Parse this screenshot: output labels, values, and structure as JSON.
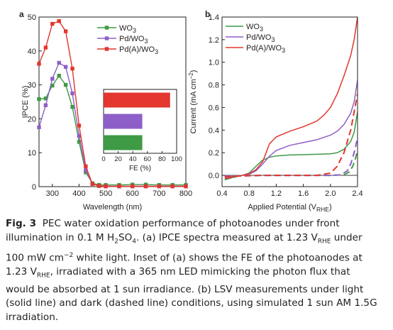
{
  "chart_data": [
    {
      "type": "line",
      "panel_label": "a",
      "xlabel": "Wavelength (nm)",
      "ylabel": "IPCE (%)",
      "xlim": [
        250,
        800
      ],
      "ylim": [
        0,
        50
      ],
      "x_ticks": [
        300,
        400,
        500,
        600,
        700,
        800
      ],
      "y_ticks": [
        0,
        10,
        20,
        30,
        40,
        50
      ],
      "legend_position": "top-right",
      "series": [
        {
          "name": "WO3",
          "color": "#3f9a45",
          "marker": "square",
          "points": [
            [
              250,
              25.8
            ],
            [
              275,
              26.0
            ],
            [
              300,
              29.8
            ],
            [
              325,
              32.7
            ],
            [
              350,
              30.0
            ],
            [
              375,
              23.5
            ],
            [
              400,
              13.2
            ],
            [
              425,
              4.2
            ],
            [
              450,
              1.0
            ],
            [
              475,
              0.5
            ],
            [
              500,
              0.5
            ],
            [
              550,
              0.5
            ],
            [
              600,
              0.6
            ],
            [
              650,
              0.6
            ],
            [
              700,
              0.5
            ],
            [
              750,
              0.5
            ],
            [
              800,
              0.5
            ]
          ]
        },
        {
          "name": "Pd/WO3",
          "color": "#8e5fc8",
          "marker": "square",
          "points": [
            [
              250,
              17.5
            ],
            [
              275,
              24.0
            ],
            [
              300,
              31.8
            ],
            [
              325,
              36.5
            ],
            [
              350,
              35.3
            ],
            [
              375,
              27.5
            ],
            [
              400,
              15.0
            ],
            [
              425,
              4.8
            ],
            [
              450,
              0.8
            ],
            [
              475,
              0.2
            ],
            [
              500,
              0.1
            ],
            [
              550,
              0.1
            ],
            [
              600,
              0.1
            ],
            [
              650,
              0.1
            ],
            [
              700,
              0.1
            ],
            [
              750,
              0.1
            ],
            [
              800,
              0.1
            ]
          ]
        },
        {
          "name": "Pd(A)/WO3",
          "color": "#e2362e",
          "marker": "square",
          "points": [
            [
              250,
              36.2
            ],
            [
              275,
              41.0
            ],
            [
              300,
              48.0
            ],
            [
              325,
              48.8
            ],
            [
              350,
              45.8
            ],
            [
              375,
              34.8
            ],
            [
              400,
              18.0
            ],
            [
              425,
              6.0
            ],
            [
              450,
              0.8
            ],
            [
              475,
              0.2
            ],
            [
              500,
              0.1
            ],
            [
              550,
              0.1
            ],
            [
              600,
              0.1
            ],
            [
              650,
              0.1
            ],
            [
              700,
              0.1
            ],
            [
              750,
              0.1
            ],
            [
              800,
              0.1
            ]
          ]
        }
      ],
      "inset": {
        "type": "bar",
        "orientation": "horizontal",
        "xlabel": "FE (%)",
        "xlim": [
          0,
          100
        ],
        "x_ticks": [
          0,
          20,
          40,
          60,
          80,
          100
        ],
        "bars": [
          {
            "name": "Pd(A)/WO3",
            "value": 91,
            "color": "#e2362e"
          },
          {
            "name": "Pd/WO3",
            "value": 53,
            "color": "#8e5fc8"
          },
          {
            "name": "WO3",
            "value": 53,
            "color": "#3f9a45"
          }
        ]
      }
    },
    {
      "type": "line",
      "panel_label": "b",
      "xlabel": "Applied Potential (V",
      "xlabel_sub": "RHE",
      "xlabel_end": ")",
      "ylabel": "Current (mA cm",
      "ylabel_sup": "−2",
      "ylabel_end": ")",
      "xlim": [
        0.4,
        2.4
      ],
      "ylim": [
        -0.1,
        1.4
      ],
      "x_ticks": [
        0.4,
        0.8,
        1.2,
        1.6,
        2.0,
        2.4
      ],
      "y_ticks": [
        0.0,
        0.2,
        0.4,
        0.6,
        0.8,
        1.0,
        1.2,
        1.4
      ],
      "legend_position": "top-left",
      "line_styles": {
        "light": "solid",
        "dark": "dashed"
      },
      "series": [
        {
          "name": "WO3",
          "condition": "light",
          "color": "#3f9a45",
          "points": [
            [
              0.44,
              -0.04
            ],
            [
              0.55,
              -0.02
            ],
            [
              0.7,
              0.0
            ],
            [
              0.8,
              0.02
            ],
            [
              0.9,
              0.08
            ],
            [
              1.0,
              0.135
            ],
            [
              1.1,
              0.16
            ],
            [
              1.2,
              0.172
            ],
            [
              1.4,
              0.18
            ],
            [
              1.6,
              0.183
            ],
            [
              1.8,
              0.186
            ],
            [
              2.0,
              0.19
            ],
            [
              2.1,
              0.2
            ],
            [
              2.2,
              0.23
            ],
            [
              2.3,
              0.3
            ],
            [
              2.35,
              0.38
            ],
            [
              2.4,
              0.56
            ]
          ]
        },
        {
          "name": "Pd/WO3",
          "condition": "light",
          "color": "#8e5fc8",
          "points": [
            [
              0.44,
              -0.02
            ],
            [
              0.55,
              -0.01
            ],
            [
              0.7,
              0.0
            ],
            [
              0.8,
              0.01
            ],
            [
              0.9,
              0.04
            ],
            [
              1.0,
              0.1
            ],
            [
              1.1,
              0.17
            ],
            [
              1.2,
              0.22
            ],
            [
              1.4,
              0.265
            ],
            [
              1.6,
              0.29
            ],
            [
              1.8,
              0.315
            ],
            [
              2.0,
              0.355
            ],
            [
              2.1,
              0.39
            ],
            [
              2.2,
              0.45
            ],
            [
              2.3,
              0.55
            ],
            [
              2.35,
              0.65
            ],
            [
              2.4,
              0.84
            ]
          ]
        },
        {
          "name": "Pd(A)/WO3",
          "condition": "light",
          "color": "#e2362e",
          "points": [
            [
              0.44,
              -0.03
            ],
            [
              0.55,
              -0.015
            ],
            [
              0.7,
              0.0
            ],
            [
              0.8,
              0.015
            ],
            [
              0.9,
              0.05
            ],
            [
              1.0,
              0.12
            ],
            [
              1.05,
              0.2
            ],
            [
              1.1,
              0.28
            ],
            [
              1.2,
              0.34
            ],
            [
              1.4,
              0.39
            ],
            [
              1.6,
              0.43
            ],
            [
              1.8,
              0.48
            ],
            [
              1.9,
              0.53
            ],
            [
              2.0,
              0.6
            ],
            [
              2.1,
              0.72
            ],
            [
              2.2,
              0.88
            ],
            [
              2.3,
              1.06
            ],
            [
              2.35,
              1.2
            ],
            [
              2.4,
              1.4
            ]
          ]
        },
        {
          "name": "WO3",
          "condition": "dark",
          "color": "#3f9a45",
          "points": [
            [
              0.44,
              -0.005
            ],
            [
              1.0,
              0.0
            ],
            [
              2.0,
              0.0
            ],
            [
              2.2,
              0.005
            ],
            [
              2.28,
              0.03
            ],
            [
              2.33,
              0.08
            ],
            [
              2.37,
              0.15
            ],
            [
              2.4,
              0.22
            ]
          ]
        },
        {
          "name": "Pd/WO3",
          "condition": "dark",
          "color": "#8e5fc8",
          "points": [
            [
              0.44,
              -0.005
            ],
            [
              1.0,
              0.0
            ],
            [
              2.0,
              0.0
            ],
            [
              2.15,
              0.005
            ],
            [
              2.25,
              0.04
            ],
            [
              2.3,
              0.1
            ],
            [
              2.35,
              0.2
            ],
            [
              2.4,
              0.33
            ]
          ]
        },
        {
          "name": "Pd(A)/WO3",
          "condition": "dark",
          "color": "#e2362e",
          "points": [
            [
              0.44,
              -0.01
            ],
            [
              1.0,
              0.0
            ],
            [
              1.8,
              0.0
            ],
            [
              2.0,
              0.02
            ],
            [
              2.1,
              0.08
            ],
            [
              2.2,
              0.2
            ],
            [
              2.3,
              0.4
            ],
            [
              2.4,
              0.72
            ]
          ]
        }
      ]
    }
  ],
  "caption": {
    "fig_label": "Fig. 3",
    "lines": [
      [
        "  PEC water oxidation performance of photoanodes under front"
      ],
      [
        "illumination in 0.1 M H",
        {
          "sub": "2"
        },
        "SO",
        {
          "sub": "4"
        },
        ". (a) IPCE spectra measured at 1.23 V",
        {
          "sub": "RHE"
        },
        " under"
      ],
      [
        "100 mW cm",
        {
          "sup": "−2"
        },
        " white light. Inset of (a) shows the FE of the photoanodes at"
      ],
      [
        "1.23 V",
        {
          "sub": "RHE"
        },
        ", irradiated with a 365 nm LED mimicking the photon flux that"
      ],
      [
        "would be absorbed at 1 sun irradiance. (b) LSV measurements under light"
      ],
      [
        "(solid line) and dark (dashed line) conditions, using simulated 1 sun AM 1.5G"
      ],
      [
        "irradiation."
      ]
    ]
  }
}
